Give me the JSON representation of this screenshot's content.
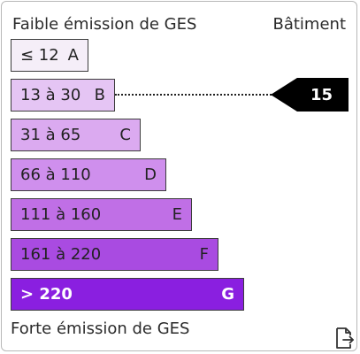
{
  "header": {
    "low_label": "Faible émission de GES",
    "building_label": "Bâtiment"
  },
  "footer": {
    "high_label": "Forte émission de GES"
  },
  "classes": [
    {
      "range": "≤ 12",
      "letter": "A",
      "color": "#f5eef8"
    },
    {
      "range": "13 à 30",
      "letter": "B",
      "color": "#e5c5f4"
    },
    {
      "range": "31 à 65",
      "letter": "C",
      "color": "#dbaaf0"
    },
    {
      "range": "66 à 110",
      "letter": "D",
      "color": "#cf8fed"
    },
    {
      "range": "111 à 160",
      "letter": "E",
      "color": "#c06fe6"
    },
    {
      "range": "161 à 220",
      "letter": "F",
      "color": "#a94be1"
    },
    {
      "range": "> 220",
      "letter": "G",
      "color": "#8a1fe0"
    }
  ],
  "current": {
    "value": "15",
    "class": "B"
  },
  "icons": {
    "export": "file-export-icon"
  }
}
